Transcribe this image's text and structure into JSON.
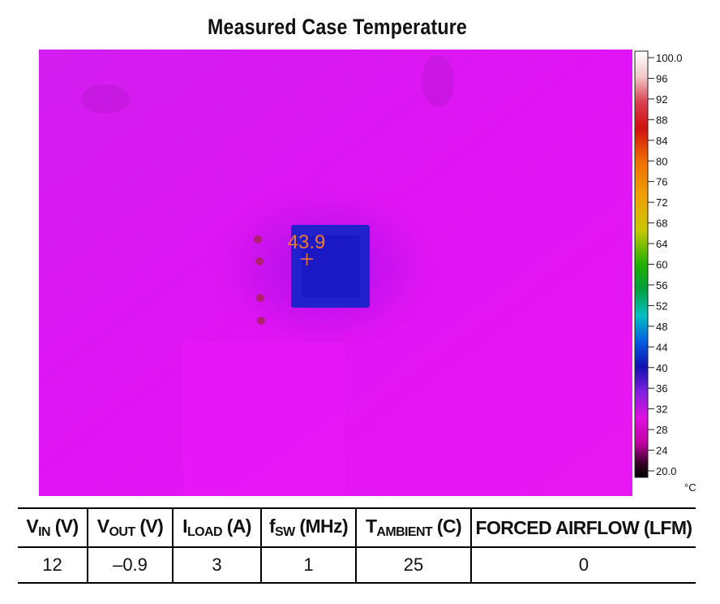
{
  "chart_data": {
    "type": "heatmap",
    "title": "Measured Case Temperature",
    "colorbar": {
      "min": 20.0,
      "max": 100.0,
      "unit": "°C",
      "tick_labels": [
        "100.0",
        "96",
        "92",
        "88",
        "84",
        "80",
        "76",
        "72",
        "68",
        "64",
        "60",
        "56",
        "52",
        "48",
        "44",
        "40",
        "36",
        "32",
        "28",
        "24",
        "20.0"
      ],
      "tick_values": [
        100,
        96,
        92,
        88,
        84,
        80,
        76,
        72,
        68,
        64,
        60,
        56,
        52,
        48,
        44,
        40,
        36,
        32,
        28,
        24,
        20
      ]
    },
    "annotations": [
      {
        "label": "43.9",
        "value": 43.9,
        "marker": "crosshair"
      }
    ]
  },
  "conditions_table": {
    "headers": [
      {
        "main": "V",
        "sub": "IN",
        "suffix": " (V)"
      },
      {
        "main": "V",
        "sub": "OUT",
        "suffix": " (V)"
      },
      {
        "main": "I",
        "sub": "LOAD",
        "suffix": " (A)"
      },
      {
        "main": "f",
        "sub": "SW",
        "suffix": " (MHz)"
      },
      {
        "main": "T",
        "sub": "AMBIENT",
        "suffix": " (C)"
      },
      {
        "main": "FORCED AIRFLOW (LFM)",
        "sub": "",
        "suffix": ""
      }
    ],
    "row": [
      "12",
      "–0.9",
      "3",
      "1",
      "25",
      "0"
    ]
  }
}
